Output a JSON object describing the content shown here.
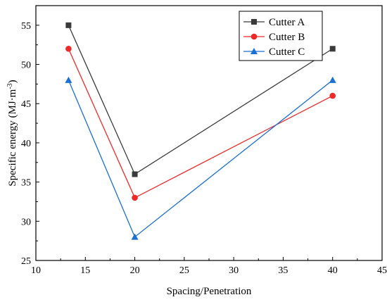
{
  "chart_data": {
    "type": "line",
    "xlabel": "Spacing/Penetration",
    "ylabel": "Specific energy (MJ·m",
    "ylabel_sup": "-3",
    "ylabel_close": ")",
    "xlim": [
      10,
      45
    ],
    "ylim": [
      25,
      57.5
    ],
    "xticks": [
      10,
      15,
      20,
      25,
      30,
      35,
      40,
      45
    ],
    "yticks": [
      25,
      30,
      35,
      40,
      45,
      50,
      55
    ],
    "grid": false,
    "legend_position": "top-right",
    "x": [
      13.3,
      20,
      40
    ],
    "series": [
      {
        "name": "Cutter A",
        "values": [
          55,
          36,
          52
        ],
        "color": "#3a3a3a",
        "marker": "square"
      },
      {
        "name": "Cutter B",
        "values": [
          52,
          33,
          46
        ],
        "color": "#f02828",
        "marker": "circle"
      },
      {
        "name": "Cutter C",
        "values": [
          48,
          28,
          48
        ],
        "color": "#1a6fd4",
        "marker": "triangle"
      }
    ]
  }
}
